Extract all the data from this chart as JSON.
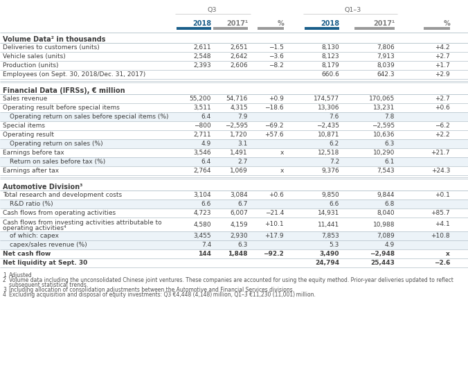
{
  "header_q3": "Q3",
  "header_q13": "Q1–3",
  "col_headers": [
    "2018",
    "2017¹",
    "%",
    "2018",
    "2017¹",
    "%"
  ],
  "col_colors": [
    "#1a5e8a",
    "#808080",
    "#808080",
    "#1a5e8a",
    "#808080",
    "#808080"
  ],
  "sections": [
    {
      "title": "Volume Data² in thousands",
      "rows": [
        {
          "label": "Deliveries to customers (units)",
          "vals": [
            "2,611",
            "2,651",
            "−1.5",
            "8,130",
            "7,806",
            "+4.2"
          ],
          "indent": 0,
          "bold": false,
          "highlight": false
        },
        {
          "label": "Vehicle sales (units)",
          "vals": [
            "2,548",
            "2,642",
            "−3.6",
            "8,123",
            "7,913",
            "+2.7"
          ],
          "indent": 0,
          "bold": false,
          "highlight": false
        },
        {
          "label": "Production (units)",
          "vals": [
            "2,393",
            "2,606",
            "−8.2",
            "8,179",
            "8,039",
            "+1.7"
          ],
          "indent": 0,
          "bold": false,
          "highlight": false
        },
        {
          "label": "Employees (on Sept. 30, 2018/Dec. 31, 2017)",
          "vals": [
            "",
            "",
            "",
            "660.6",
            "642.3",
            "+2.9"
          ],
          "indent": 0,
          "bold": false,
          "highlight": false
        }
      ]
    },
    {
      "title": "Financial Data (IFRSs), € million",
      "rows": [
        {
          "label": "Sales revenue",
          "vals": [
            "55,200",
            "54,716",
            "+0.9",
            "174,577",
            "170,065",
            "+2.7"
          ],
          "indent": 0,
          "bold": false,
          "highlight": false
        },
        {
          "label": "Operating result before special items",
          "vals": [
            "3,511",
            "4,315",
            "−18.6",
            "13,306",
            "13,231",
            "+0.6"
          ],
          "indent": 0,
          "bold": false,
          "highlight": false
        },
        {
          "label": "Operating return on sales before special items (%)",
          "vals": [
            "6.4",
            "7.9",
            "",
            "7.6",
            "7.8",
            ""
          ],
          "indent": 1,
          "bold": false,
          "highlight": true
        },
        {
          "label": "Special items",
          "vals": [
            "−800",
            "−2,595",
            "−69.2",
            "−2,435",
            "−2,595",
            "−6.2"
          ],
          "indent": 0,
          "bold": false,
          "highlight": false
        },
        {
          "label": "Operating result",
          "vals": [
            "2,711",
            "1,720",
            "+57.6",
            "10,871",
            "10,636",
            "+2.2"
          ],
          "indent": 0,
          "bold": false,
          "highlight": false
        },
        {
          "label": "Operating return on sales (%)",
          "vals": [
            "4.9",
            "3.1",
            "",
            "6.2",
            "6.3",
            ""
          ],
          "indent": 1,
          "bold": false,
          "highlight": true
        },
        {
          "label": "Earnings before tax",
          "vals": [
            "3,546",
            "1,491",
            "x",
            "12,518",
            "10,290",
            "+21.7"
          ],
          "indent": 0,
          "bold": false,
          "highlight": false
        },
        {
          "label": "Return on sales before tax (%)",
          "vals": [
            "6.4",
            "2.7",
            "",
            "7.2",
            "6.1",
            ""
          ],
          "indent": 1,
          "bold": false,
          "highlight": true
        },
        {
          "label": "Earnings after tax",
          "vals": [
            "2,764",
            "1,069",
            "x",
            "9,376",
            "7,543",
            "+24.3"
          ],
          "indent": 0,
          "bold": false,
          "highlight": false
        }
      ]
    },
    {
      "title": "Automotive Division³",
      "rows": [
        {
          "label": "Total research and development costs",
          "vals": [
            "3,104",
            "3,084",
            "+0.6",
            "9,850",
            "9,844",
            "+0.1"
          ],
          "indent": 0,
          "bold": false,
          "highlight": false
        },
        {
          "label": "R&D ratio (%)",
          "vals": [
            "6.6",
            "6.7",
            "",
            "6.6",
            "6.8",
            ""
          ],
          "indent": 1,
          "bold": false,
          "highlight": true
        },
        {
          "label": "Cash flows from operating activities",
          "vals": [
            "4,723",
            "6,007",
            "−21.4",
            "14,931",
            "8,040",
            "+85.7"
          ],
          "indent": 0,
          "bold": false,
          "highlight": false
        },
        {
          "label": "Cash flows from investing activities attributable to\noperating activities⁴",
          "vals": [
            "4,580",
            "4,159",
            "+10.1",
            "11,441",
            "10,988",
            "+4.1"
          ],
          "indent": 0,
          "bold": false,
          "highlight": false,
          "multiline": true
        },
        {
          "label": "of which: capex",
          "vals": [
            "3,455",
            "2,930",
            "+17.9",
            "7,853",
            "7,089",
            "+10.8"
          ],
          "indent": 1,
          "bold": false,
          "highlight": true
        },
        {
          "label": "capex/sales revenue (%)",
          "vals": [
            "7.4",
            "6.3",
            "",
            "5.3",
            "4.9",
            ""
          ],
          "indent": 1,
          "bold": false,
          "highlight": true
        },
        {
          "label": "Net cash flow",
          "vals": [
            "144",
            "1,848",
            "−92.2",
            "3,490",
            "−2,948",
            "x"
          ],
          "indent": 0,
          "bold": true,
          "highlight": false
        },
        {
          "label": "Net liquidity at Sept. 30",
          "vals": [
            "",
            "",
            "",
            "24,794",
            "25,443",
            "−2.6"
          ],
          "indent": 0,
          "bold": true,
          "highlight": false
        }
      ]
    }
  ],
  "footnotes": [
    [
      "1",
      "Adjusted"
    ],
    [
      "2",
      "Volume data including the unconsolidated Chinese joint ventures. These companies are accounted for using the equity method. Prior-year deliveries updated to reflect\nsubsequent statistical trends."
    ],
    [
      "3",
      "Including allocation of consolidation adjustments between the Automotive and Financial Services divisions."
    ],
    [
      "4",
      "Excluding acquisition and disposal of equity investments: Q3 €4,448 (4,148) million, Q1–3 €11,230 (11,001) million."
    ]
  ],
  "bg_color": "#ffffff",
  "text_color": "#3d3d3d",
  "bar_2018_color": "#1a5e8a",
  "bar_2017_color": "#999999"
}
